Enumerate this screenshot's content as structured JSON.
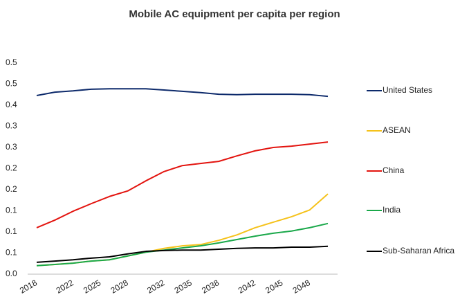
{
  "chart_data": {
    "type": "line",
    "title": "Mobile AC equipment per capita per region",
    "x": [
      2018,
      2020,
      2022,
      2024,
      2026,
      2028,
      2030,
      2032,
      2034,
      2036,
      2038,
      2040,
      2042,
      2044,
      2046,
      2048,
      2050
    ],
    "xlim": [
      2018,
      2050
    ],
    "xticks": [
      2018,
      2022,
      2025,
      2028,
      2032,
      2035,
      2038,
      2042,
      2045,
      2048
    ],
    "ylim": [
      0,
      0.5
    ],
    "yticks": [
      {
        "value": 0,
        "label": "0.0"
      },
      {
        "value": 0.05,
        "label": "0.1"
      },
      {
        "value": 0.1,
        "label": "0.1"
      },
      {
        "value": 0.15,
        "label": "0.1"
      },
      {
        "value": 0.2,
        "label": "0.2"
      },
      {
        "value": 0.25,
        "label": "0.2"
      },
      {
        "value": 0.3,
        "label": "0.3"
      },
      {
        "value": 0.35,
        "label": "0.3"
      },
      {
        "value": 0.4,
        "label": "0.4"
      },
      {
        "value": 0.45,
        "label": "0.5"
      },
      {
        "value": 0.5,
        "label": "0.5"
      }
    ],
    "legend": "right",
    "series": [
      {
        "name": "United States",
        "color": "#0d2a6b",
        "values": [
          0.423,
          0.431,
          0.434,
          0.438,
          0.439,
          0.439,
          0.439,
          0.436,
          0.433,
          0.43,
          0.426,
          0.425,
          0.426,
          0.426,
          0.426,
          0.425,
          0.421
        ]
      },
      {
        "name": "ASEAN",
        "color": "#f5c21b",
        "values": [
          0.02,
          0.023,
          0.026,
          0.031,
          0.034,
          0.043,
          0.052,
          0.061,
          0.067,
          0.07,
          0.08,
          0.093,
          0.11,
          0.123,
          0.136,
          0.152,
          0.19
        ]
      },
      {
        "name": "China",
        "color": "#e3140f",
        "values": [
          0.11,
          0.128,
          0.149,
          0.167,
          0.184,
          0.197,
          0.221,
          0.243,
          0.257,
          0.262,
          0.267,
          0.28,
          0.292,
          0.3,
          0.303,
          0.308,
          0.313
        ]
      },
      {
        "name": "India",
        "color": "#1aa84a",
        "values": [
          0.02,
          0.023,
          0.026,
          0.031,
          0.034,
          0.043,
          0.052,
          0.057,
          0.062,
          0.067,
          0.074,
          0.082,
          0.09,
          0.097,
          0.102,
          0.11,
          0.12
        ]
      },
      {
        "name": "Sub-Saharan Africa",
        "color": "#000000",
        "values": [
          0.028,
          0.031,
          0.034,
          0.038,
          0.041,
          0.048,
          0.054,
          0.056,
          0.057,
          0.057,
          0.059,
          0.061,
          0.062,
          0.062,
          0.064,
          0.064,
          0.066
        ]
      }
    ]
  }
}
